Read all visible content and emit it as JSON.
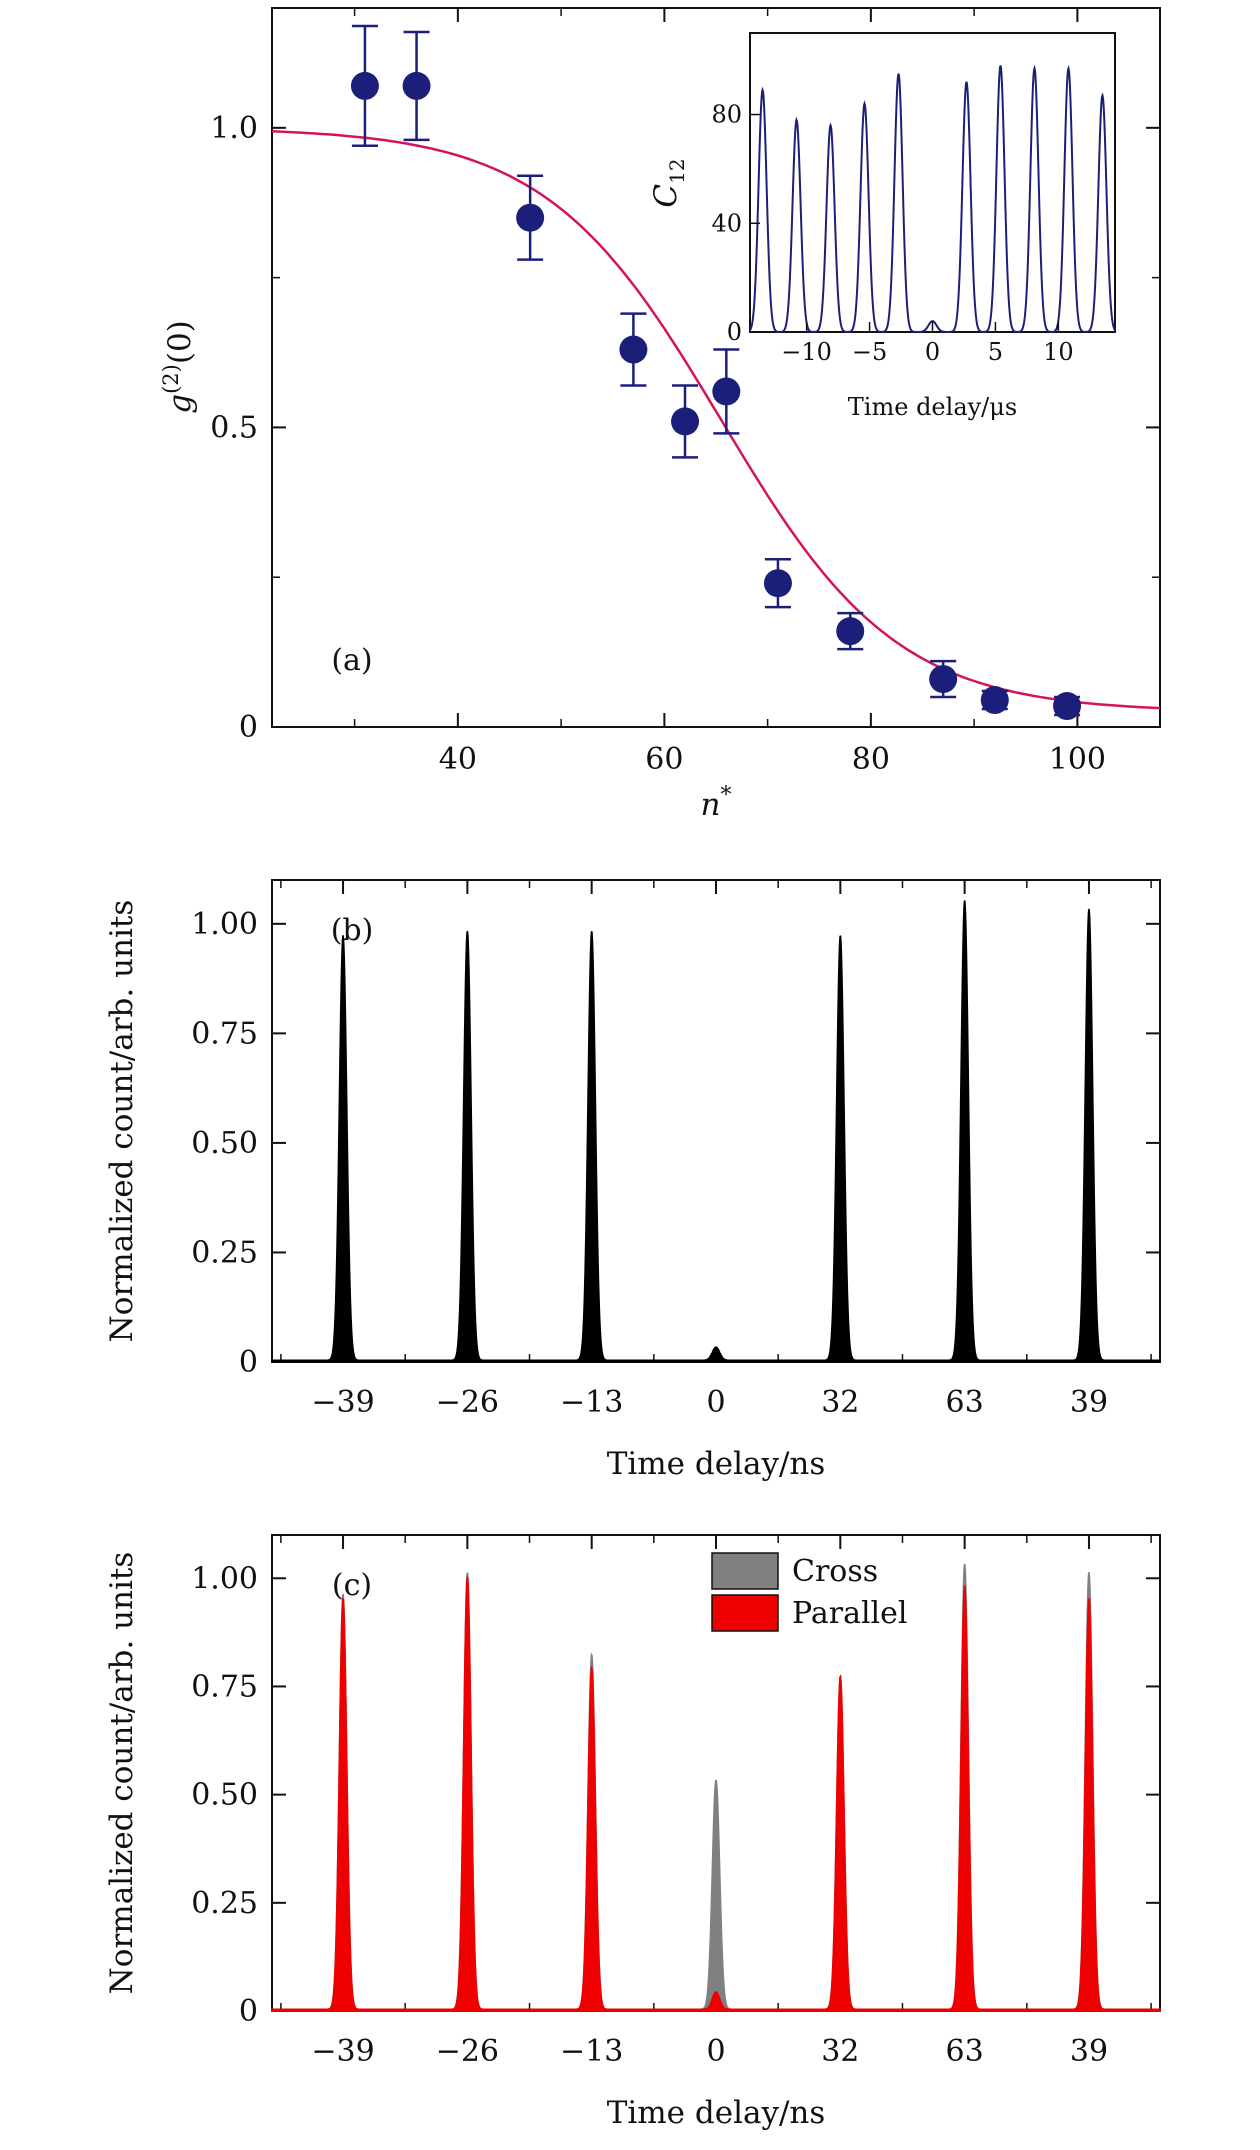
{
  "chart_data": [
    {
      "panel": "(a)",
      "type": "scatter",
      "xlabel_var": "n",
      "xlabel_sup": "*",
      "ylabel_var": "g",
      "ylabel_sup": "(2)",
      "ylabel_arg": "(0)",
      "xlim": [
        22,
        108
      ],
      "ylim": [
        0,
        1.2
      ],
      "xticks": [
        40,
        60,
        80,
        100
      ],
      "xtick_labels": [
        "40",
        "60",
        "80",
        "100"
      ],
      "yticks": [
        0,
        0.5,
        1.0
      ],
      "ytick_labels": [
        "0",
        "0.5",
        "1.0"
      ],
      "marker_color": "#1c1f7a",
      "fit_color": "#d4145a",
      "points": [
        {
          "x": 31,
          "y": 1.07,
          "err": 0.1
        },
        {
          "x": 36,
          "y": 1.07,
          "err": 0.09
        },
        {
          "x": 47,
          "y": 0.85,
          "err": 0.07
        },
        {
          "x": 57,
          "y": 0.63,
          "err": 0.06
        },
        {
          "x": 62,
          "y": 0.51,
          "err": 0.06
        },
        {
          "x": 66,
          "y": 0.56,
          "err": 0.07
        },
        {
          "x": 71,
          "y": 0.24,
          "err": 0.04
        },
        {
          "x": 78,
          "y": 0.16,
          "err": 0.03
        },
        {
          "x": 87,
          "y": 0.08,
          "err": 0.03
        },
        {
          "x": 92,
          "y": 0.045,
          "err": 0.015
        },
        {
          "x": 99,
          "y": 0.035,
          "err": 0.015
        }
      ],
      "fit": {
        "model": "sigmoid",
        "top": 1.0,
        "bottom": 0.025,
        "center": 65.5,
        "width": 8.5
      },
      "inset": {
        "type": "line",
        "xlabel": "Time delay/μs",
        "ylabel_var": "C",
        "ylabel_sub": "12",
        "xlim": [
          -14.5,
          14.5
        ],
        "ylim": [
          0,
          110
        ],
        "xticks": [
          -10,
          -5,
          0,
          5,
          10
        ],
        "xtick_labels": [
          "−10",
          "−5",
          "0",
          "5",
          "10"
        ],
        "yticks": [
          0,
          40,
          80
        ],
        "ytick_labels": [
          "0",
          "40",
          "80"
        ],
        "color": "#1c1f7a",
        "peaks": [
          {
            "x": -13.5,
            "y": 89
          },
          {
            "x": -10.8,
            "y": 78
          },
          {
            "x": -8.1,
            "y": 76
          },
          {
            "x": -5.4,
            "y": 84
          },
          {
            "x": -2.7,
            "y": 95
          },
          {
            "x": 0,
            "y": 4
          },
          {
            "x": 2.7,
            "y": 92
          },
          {
            "x": 5.4,
            "y": 98
          },
          {
            "x": 8.1,
            "y": 97
          },
          {
            "x": 10.8,
            "y": 97
          },
          {
            "x": 13.5,
            "y": 87
          }
        ]
      }
    },
    {
      "panel": "(b)",
      "type": "line",
      "xlabel": "Time delay/ns",
      "ylabel": "Normalized count/arb. units",
      "xlim": [
        0,
        100
      ],
      "ylim": [
        0,
        1.1
      ],
      "xtick_labels": [
        "−39",
        "−26",
        "−13",
        "0",
        "32",
        "63",
        "39"
      ],
      "yticks": [
        0,
        0.25,
        0.5,
        0.75,
        1.0
      ],
      "ytick_labels": [
        "0",
        "0.25",
        "0.50",
        "0.75",
        "1.00"
      ],
      "color": "#000000",
      "series": [
        {
          "peak_labels": [
            "−39",
            "−26",
            "−13",
            "0",
            "32",
            "63",
            "39"
          ],
          "values": [
            0.97,
            0.98,
            0.98,
            0.03,
            0.97,
            1.05,
            1.03
          ]
        }
      ]
    },
    {
      "panel": "(c)",
      "type": "area",
      "xlabel": "Time delay/ns",
      "ylabel": "Normalized count/arb. units",
      "xlim": [
        0,
        100
      ],
      "ylim": [
        0,
        1.1
      ],
      "xtick_labels": [
        "−39",
        "−26",
        "−13",
        "0",
        "32",
        "63",
        "39"
      ],
      "yticks": [
        0,
        0.25,
        0.5,
        0.75,
        1.0
      ],
      "ytick_labels": [
        "0",
        "0.25",
        "0.50",
        "0.75",
        "1.00"
      ],
      "legend_position": "top-center",
      "series": [
        {
          "name": "Cross",
          "color": "#808080",
          "peak_labels": [
            "−39",
            "−26",
            "−13",
            "0",
            "32",
            "63",
            "39"
          ],
          "values": [
            0.96,
            1.01,
            0.82,
            0.53,
            0.77,
            1.03,
            1.01
          ]
        },
        {
          "name": "Parallel",
          "color": "#ee0000",
          "peak_labels": [
            "−39",
            "−26",
            "−13",
            "0",
            "32",
            "63",
            "39"
          ],
          "values": [
            0.95,
            1.0,
            0.79,
            0.04,
            0.77,
            0.98,
            0.95
          ]
        }
      ]
    }
  ]
}
